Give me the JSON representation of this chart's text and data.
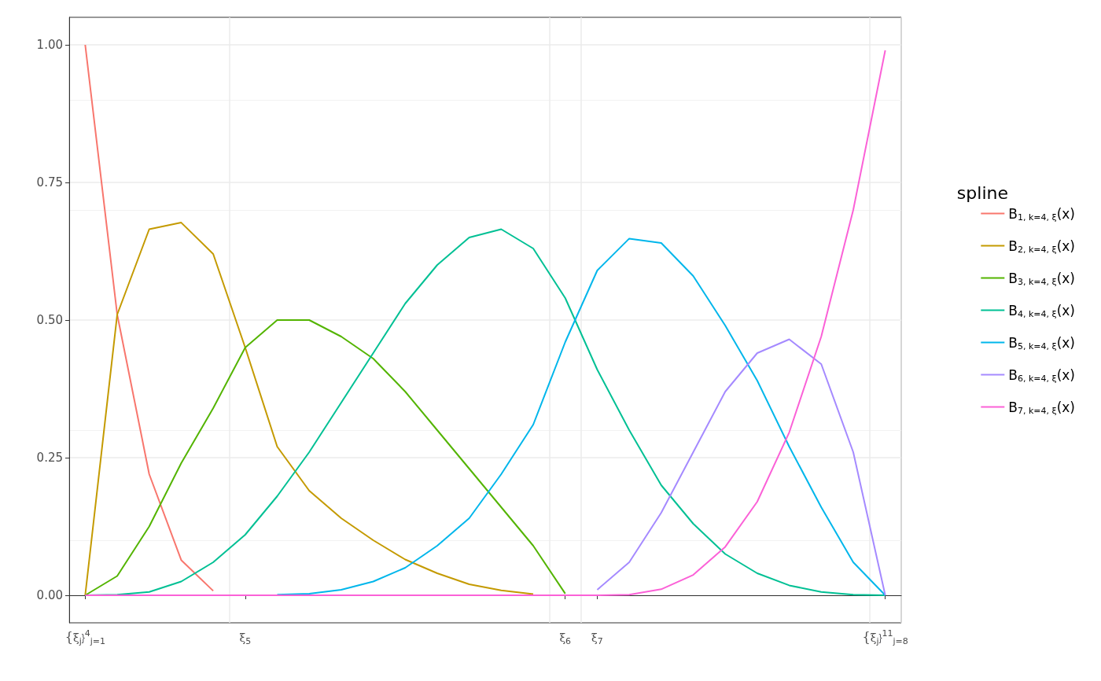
{
  "chart_data": {
    "type": "line",
    "legend_title": "spline",
    "categories": [
      "{ξ$_{j}$}$^{4}$$_{j=1}$",
      null,
      null,
      null,
      null,
      "ξ$_{5}$",
      null,
      null,
      null,
      null,
      null,
      null,
      null,
      null,
      null,
      "ξ$_{6}$",
      "ξ$_{7}$",
      null,
      null,
      null,
      null,
      null,
      null,
      null,
      null,
      "{ξ$_{j}$}$^{11}$$_{j=8}$"
    ],
    "series": [
      {
        "name": "B$_{1, k=4, ξ}$(x)",
        "color": "#f8766d",
        "values": [
          1,
          0.51,
          0.22,
          0.064,
          0.008,
          null,
          null,
          null,
          null,
          null,
          null,
          null,
          null,
          null,
          null,
          null,
          null,
          null,
          null,
          null,
          null,
          null,
          null,
          null,
          null,
          null
        ]
      },
      {
        "name": "B$_{2, k=4, ξ}$(x)",
        "color": "#c49a00",
        "values": [
          0,
          0.51,
          0.665,
          0.677,
          0.62,
          0.45,
          0.27,
          0.19,
          0.14,
          0.1,
          0.065,
          0.04,
          0.02,
          0.009,
          0.002,
          null,
          null,
          null,
          null,
          null,
          null,
          null,
          null,
          null,
          null,
          null
        ]
      },
      {
        "name": "B$_{3, k=4, ξ}$(x)",
        "color": "#53b400",
        "values": [
          0,
          0.035,
          0.125,
          0.24,
          0.34,
          0.45,
          0.5,
          0.5,
          0.47,
          0.43,
          0.37,
          0.3,
          0.23,
          0.16,
          0.09,
          0.003,
          null,
          null,
          null,
          null,
          null,
          null,
          null,
          null,
          null,
          null
        ]
      },
      {
        "name": "B$_{4, k=4, ξ}$(x)",
        "color": "#00c094",
        "values": [
          0,
          0.001,
          0.006,
          0.025,
          0.06,
          0.11,
          0.18,
          0.26,
          0.35,
          0.44,
          0.53,
          0.6,
          0.65,
          0.665,
          0.63,
          0.54,
          0.41,
          0.3,
          0.2,
          0.13,
          0.075,
          0.04,
          0.018,
          0.006,
          0.001,
          0
        ]
      },
      {
        "name": "B$_{5, k=4, ξ}$(x)",
        "color": "#00b6eb",
        "values": [
          null,
          null,
          null,
          null,
          null,
          null,
          0.001,
          0.003,
          0.01,
          0.025,
          0.05,
          0.09,
          0.14,
          0.22,
          0.31,
          0.46,
          0.59,
          0.648,
          0.64,
          0.58,
          0.49,
          0.39,
          0.27,
          0.16,
          0.06,
          0
        ]
      },
      {
        "name": "B$_{6, k=4, ξ}$(x)",
        "color": "#a58aff",
        "values": [
          null,
          null,
          null,
          null,
          null,
          null,
          null,
          null,
          null,
          null,
          null,
          null,
          null,
          null,
          null,
          null,
          0.01,
          0.06,
          0.15,
          0.26,
          0.37,
          0.44,
          0.465,
          0.42,
          0.26,
          0
        ]
      },
      {
        "name": "B$_{7, k=4, ξ}$(x)",
        "color": "#fb61d7",
        "values": [
          0,
          0,
          0,
          0,
          0,
          0,
          0,
          0,
          0,
          0,
          0,
          0,
          0,
          0,
          0,
          0,
          0,
          0.001,
          0.011,
          0.037,
          0.088,
          0.17,
          0.296,
          0.47,
          0.7,
          0.99
        ]
      }
    ],
    "ylim": [
      -0.05,
      1.05
    ],
    "yticks": [
      {
        "value": 0,
        "label": "0.00"
      },
      {
        "value": 0.25,
        "label": "0.25"
      },
      {
        "value": 0.5,
        "label": "0.50"
      },
      {
        "value": 0.75,
        "label": "0.75"
      },
      {
        "value": 1,
        "label": "1.00"
      }
    ],
    "grid": true,
    "legend": "right",
    "marker": "none",
    "line_style": "solid"
  }
}
